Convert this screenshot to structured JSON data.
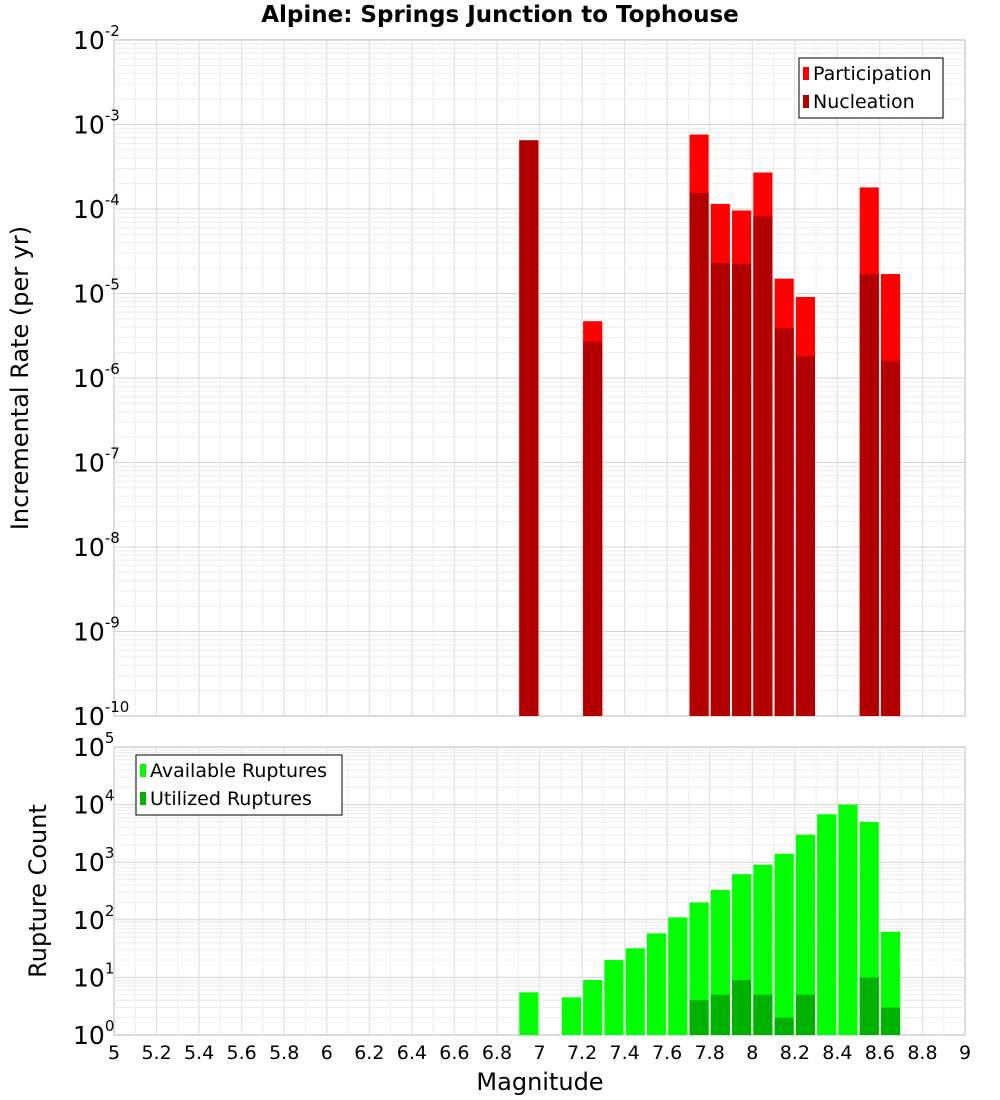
{
  "chart_data": [
    {
      "type": "bar",
      "title": "Alpine: Springs Junction to Tophouse",
      "xlabel": "",
      "ylabel": "Incremental Rate (per yr)",
      "scale_y": "log",
      "ylim_exp": [
        -10,
        -2
      ],
      "xlim": [
        5,
        9
      ],
      "grid": true,
      "legend_position": "top-right",
      "y_tick_base": "10",
      "y_tick_exponents": [
        "-10",
        "-9",
        "-8",
        "-7",
        "-6",
        "-5",
        "-4",
        "-3",
        "-2"
      ],
      "bar_width": 0.09,
      "series": [
        {
          "name": "Participation",
          "color": "#ff0000",
          "x": [
            6.95,
            7.25,
            7.75,
            7.85,
            7.95,
            8.05,
            8.15,
            8.25,
            8.55,
            8.65
          ],
          "values": [
            0.00065,
            4.7e-06,
            0.00076,
            0.000115,
            9.6e-05,
            0.00027,
            1.5e-05,
            9.1e-06,
            0.00018,
            1.7e-05
          ]
        },
        {
          "name": "Nucleation",
          "color": "#b20000",
          "x": [
            6.95,
            7.25,
            7.75,
            7.85,
            7.95,
            8.05,
            8.15,
            8.25,
            8.55,
            8.65
          ],
          "values": [
            0.00065,
            2.7e-06,
            0.000155,
            2.3e-05,
            2.25e-05,
            8.2e-05,
            3.9e-06,
            1.8e-06,
            1.7e-05,
            1.6e-06
          ]
        }
      ]
    },
    {
      "type": "bar",
      "title": "",
      "xlabel": "Magnitude",
      "ylabel": "Rupture Count",
      "scale_y": "log",
      "ylim_exp": [
        0,
        5
      ],
      "xlim": [
        5,
        9
      ],
      "grid": true,
      "legend_position": "top-left",
      "y_tick_base": "10",
      "y_tick_exponents": [
        "0",
        "1",
        "2",
        "3",
        "4",
        "5"
      ],
      "x_tick_labels": [
        "5",
        "5.2",
        "5.4",
        "5.6",
        "5.8",
        "6",
        "6.2",
        "6.4",
        "6.6",
        "6.8",
        "7",
        "7.2",
        "7.4",
        "7.6",
        "7.8",
        "8",
        "8.2",
        "8.4",
        "8.6",
        "8.8",
        "9"
      ],
      "bar_width": 0.09,
      "series": [
        {
          "name": "Available Ruptures",
          "color": "#00ff00",
          "x": [
            6.95,
            7.15,
            7.25,
            7.35,
            7.45,
            7.55,
            7.65,
            7.75,
            7.85,
            7.95,
            8.05,
            8.15,
            8.25,
            8.35,
            8.45,
            8.55,
            8.65
          ],
          "values": [
            5.5,
            4.5,
            9,
            20,
            32,
            58,
            110,
            200,
            330,
            620,
            900,
            1400,
            3000,
            6800,
            10000,
            5000,
            62
          ]
        },
        {
          "name": "Utilized Ruptures",
          "color": "#00b200",
          "x": [
            6.95,
            7.25,
            7.75,
            7.85,
            7.95,
            8.05,
            8.15,
            8.25,
            8.55,
            8.65
          ],
          "values": [
            1,
            1,
            4,
            5,
            9,
            5,
            2,
            5,
            10,
            3
          ]
        }
      ]
    }
  ]
}
